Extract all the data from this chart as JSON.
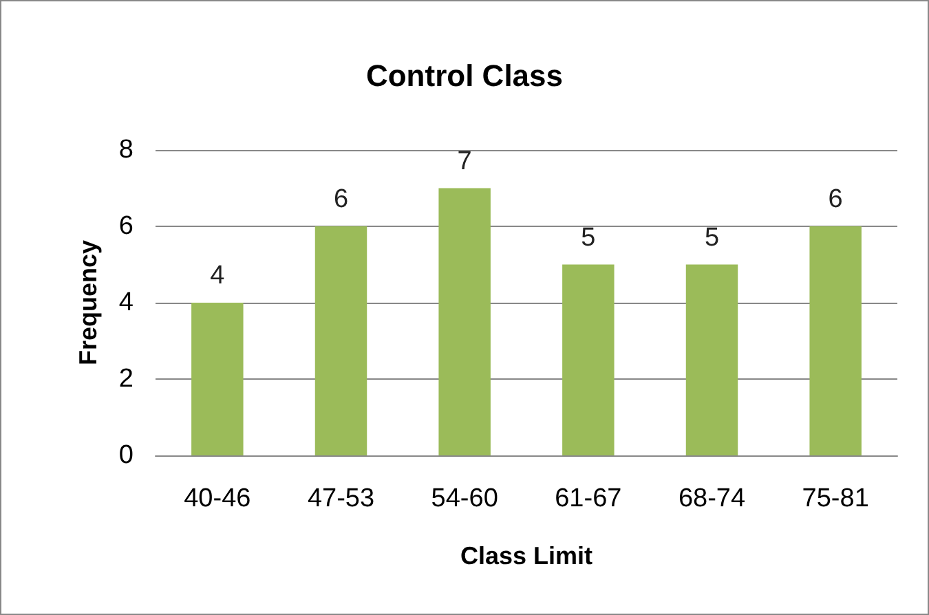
{
  "chart_data": {
    "type": "bar",
    "title": "Control Class",
    "xlabel": "Class Limit",
    "ylabel": "Frequency",
    "categories": [
      "40-46",
      "47-53",
      "54-60",
      "61-67",
      "68-74",
      "75-81"
    ],
    "values": [
      4,
      6,
      7,
      5,
      5,
      6
    ],
    "color": "#9bbb59",
    "ylim": [
      0,
      8
    ],
    "yticks": [
      0,
      2,
      4,
      6,
      8
    ],
    "grid": "y",
    "data_labels": true
  }
}
